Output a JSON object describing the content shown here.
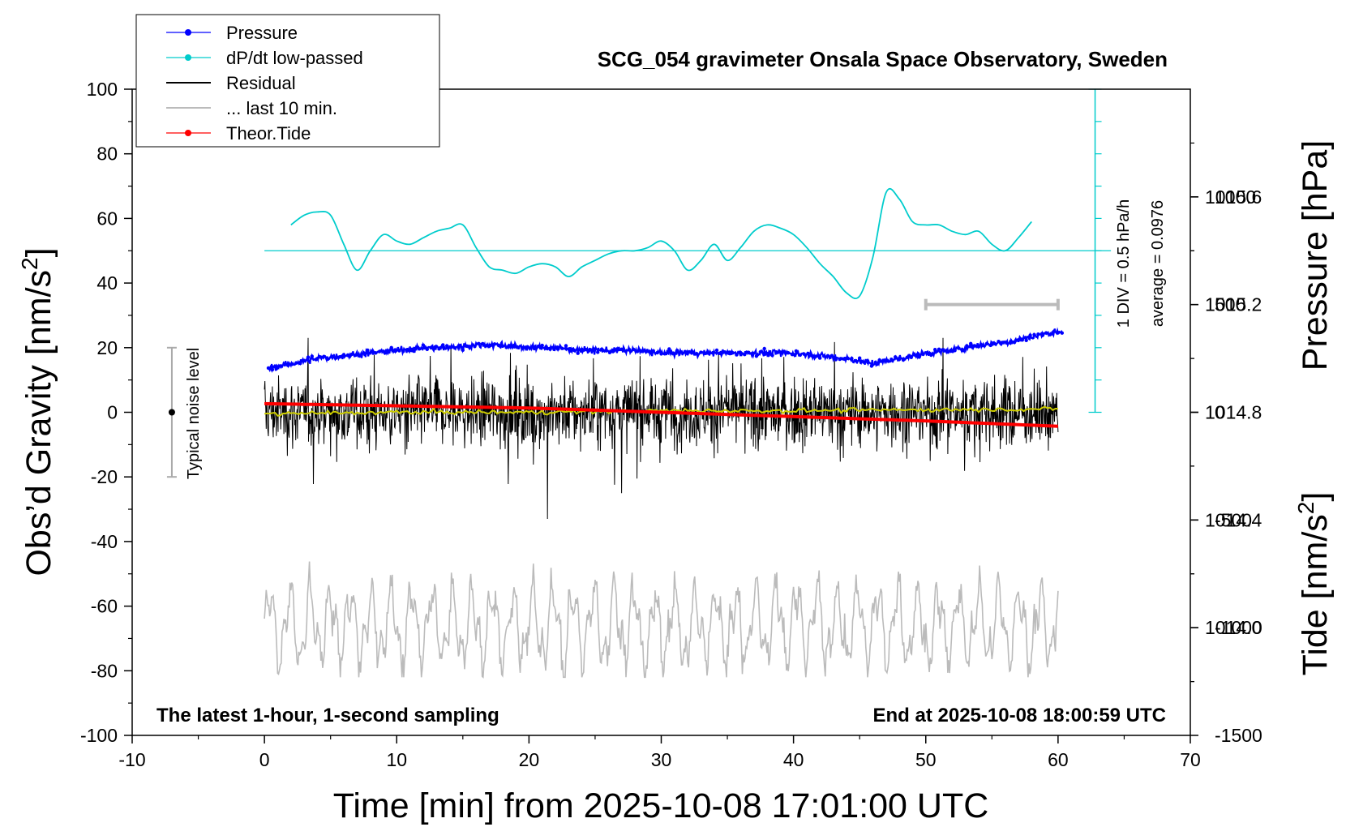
{
  "chart_data": {
    "type": "line",
    "title": "SCG_054 gravimeter Onsala Space Observatory, Sweden",
    "xlabel": "Time [min] from 2025-10-08 17:01:00 UTC",
    "ylabel": "Obs’d Gravity [nm/s",
    "ylabel_sup": "2",
    "ylabel_close": "]",
    "y2label": "Pressure [hPa]",
    "y3label": "Tide [nm/s",
    "y3label_sup": "2",
    "y3label_close": "]",
    "xlim": [
      -10,
      70
    ],
    "ylim": [
      -100,
      100
    ],
    "pressure_axis": {
      "ylim": [
        1013.6,
        1016.0
      ]
    },
    "tide_axis": {
      "ylim": [
        -1500,
        1500
      ]
    },
    "x_ticks": [
      "-10",
      "0",
      "10",
      "20",
      "30",
      "40",
      "50",
      "60",
      "70"
    ],
    "y_ticks": [
      "-100",
      "-80",
      "-60",
      "-40",
      "-20",
      "0",
      "20",
      "40",
      "60",
      "80",
      "100"
    ],
    "pressure_ticks": [
      "1014.0",
      "1014.4",
      "1014.8",
      "1015.2",
      "1015.6"
    ],
    "tide_ticks": [
      "-1500",
      "-1000",
      "-500",
      "0",
      "500",
      "1000"
    ],
    "legend": [
      "Pressure",
      "dP/dt low-passed",
      "Residual",
      "... last 10 min.",
      "Theor.Tide"
    ],
    "noise_label": "Typical noise level",
    "noise_range": [
      -20,
      20
    ],
    "div_label": "1 DIV = 0.5 hPa/h",
    "average_label": "average = 0.0976",
    "bottom_left_note": "The latest 1-hour, 1-second sampling",
    "bottom_right_note": "End at 2025-10-08 18:00:59 UTC",
    "last10_bar": [
      50,
      60
    ],
    "series": [
      {
        "name": "Pressure",
        "unit": "hPa",
        "x": [
          0,
          2,
          4,
          6,
          8,
          10,
          12,
          14,
          16,
          18,
          20,
          22,
          24,
          26,
          28,
          30,
          32,
          34,
          36,
          38,
          40,
          42,
          44,
          46,
          48,
          50,
          52,
          54,
          56,
          58,
          60
        ],
        "values": [
          1014.96,
          1014.98,
          1015.0,
          1015.01,
          1015.02,
          1015.03,
          1015.04,
          1015.04,
          1015.05,
          1015.05,
          1015.04,
          1015.04,
          1015.03,
          1015.03,
          1015.03,
          1015.02,
          1015.02,
          1015.02,
          1015.02,
          1015.02,
          1015.02,
          1015.01,
          1015.0,
          1014.98,
          1015.0,
          1015.02,
          1015.03,
          1015.05,
          1015.06,
          1015.08,
          1015.1
        ]
      },
      {
        "name": "dP/dt low-passed",
        "unit": "nm/s2 plot scale",
        "x": [
          2,
          3,
          4,
          5,
          6,
          7,
          8,
          9,
          10,
          11,
          12,
          13,
          14,
          15,
          16,
          17,
          18,
          19,
          20,
          21,
          22,
          23,
          24,
          25,
          26,
          27,
          28,
          29,
          30,
          31,
          32,
          33,
          34,
          35,
          36,
          37,
          38,
          39,
          40,
          41,
          42,
          43,
          44,
          45,
          46,
          47,
          48,
          49,
          50,
          51,
          52,
          53,
          54,
          55,
          56,
          57,
          58
        ],
        "values": [
          58,
          61,
          62,
          61,
          52,
          44,
          50,
          55,
          53,
          52,
          54,
          56,
          57,
          58,
          51,
          45,
          44,
          43,
          45,
          46,
          45,
          42,
          45,
          47,
          49,
          50,
          50,
          51,
          53,
          50,
          44,
          47,
          52,
          47,
          51,
          56,
          58,
          57,
          55,
          51,
          46,
          42,
          37,
          36,
          48,
          68,
          66,
          59,
          58,
          58,
          56,
          55,
          56,
          52,
          50,
          54,
          59
        ]
      },
      {
        "name": "Residual",
        "unit": "nm/s2",
        "x_range": [
          0,
          60
        ],
        "amplitude": 20,
        "extremes": {
          "min": -33,
          "max": 23
        }
      },
      {
        "name": "Residual smoothed",
        "unit": "nm/s2",
        "x": [
          0,
          10,
          20,
          30,
          40,
          50,
          60
        ],
        "values": [
          -0.5,
          0,
          0,
          0.5,
          0.5,
          0.8,
          1.0
        ]
      },
      {
        "name": "... last 10 min.",
        "unit": "nm/s2 plot scale",
        "x_range": [
          0,
          60
        ],
        "y_range": [
          -82,
          -46
        ]
      },
      {
        "name": "Theor.Tide",
        "unit": "nm/s2",
        "x": [
          0,
          10,
          20,
          30,
          40,
          50,
          60
        ],
        "values": [
          40,
          30,
          20,
          0,
          -20,
          -40,
          -65
        ]
      }
    ]
  },
  "colors": {
    "pressure": "#0000ff",
    "dpdt": "#00cccc",
    "residual": "#000000",
    "last10": "#bbbbbb",
    "tide": "#ff0000",
    "smooth": "#cccc00"
  }
}
